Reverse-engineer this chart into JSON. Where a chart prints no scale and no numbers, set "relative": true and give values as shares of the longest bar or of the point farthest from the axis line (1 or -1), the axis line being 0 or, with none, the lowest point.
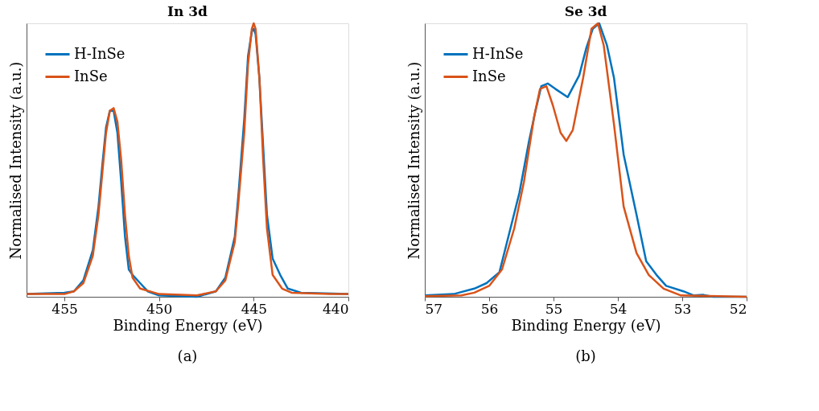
{
  "chart_data": [
    {
      "type": "line",
      "title": "In 3d",
      "xlabel": "Binding Energy (eV)",
      "ylabel": "Normalised Intensity (a.u.)",
      "relative": true,
      "legend": "top left",
      "grid": false,
      "xlim": [
        457,
        440
      ],
      "xticks": [
        455,
        450,
        445,
        440
      ],
      "annotations": [
        "(a)"
      ],
      "series": [
        {
          "name": "H-InSe",
          "color": "#0072bd",
          "x": [
            457,
            455,
            454.5,
            454,
            453.5,
            453.2,
            453,
            452.8,
            452.6,
            452.4,
            452.2,
            452,
            451.8,
            451.6,
            451.4,
            451,
            450.6,
            450,
            448,
            447,
            446.5,
            446,
            445.8,
            445.5,
            445.3,
            445.1,
            445,
            444.9,
            444.7,
            444.5,
            444.3,
            444,
            443.6,
            443.2,
            442.5,
            440
          ],
          "values": [
            0.01,
            0.015,
            0.02,
            0.06,
            0.17,
            0.33,
            0.48,
            0.62,
            0.68,
            0.68,
            0.6,
            0.42,
            0.22,
            0.1,
            0.08,
            0.05,
            0.02,
            0.005,
            0.0,
            0.02,
            0.07,
            0.22,
            0.38,
            0.65,
            0.88,
            0.97,
            0.98,
            0.96,
            0.8,
            0.55,
            0.3,
            0.14,
            0.08,
            0.03,
            0.015,
            0.01
          ]
        },
        {
          "name": "InSe",
          "color": "#d95319",
          "x": [
            457,
            455,
            454.5,
            454,
            453.5,
            453.2,
            453,
            452.8,
            452.6,
            452.4,
            452.2,
            452,
            451.8,
            451.6,
            451.4,
            451,
            450,
            448,
            447,
            446.5,
            446,
            445.8,
            445.5,
            445.3,
            445.1,
            445,
            444.9,
            444.7,
            444.5,
            444.3,
            444,
            443.5,
            443,
            441,
            440
          ],
          "values": [
            0.01,
            0.01,
            0.02,
            0.05,
            0.15,
            0.3,
            0.45,
            0.6,
            0.68,
            0.69,
            0.64,
            0.5,
            0.3,
            0.15,
            0.07,
            0.03,
            0.01,
            0.005,
            0.02,
            0.06,
            0.2,
            0.35,
            0.6,
            0.85,
            0.98,
            1.0,
            0.98,
            0.8,
            0.5,
            0.25,
            0.08,
            0.03,
            0.015,
            0.01,
            0.01
          ]
        }
      ]
    },
    {
      "type": "line",
      "title": "Se 3d",
      "xlabel": "Binding Energy (eV)",
      "ylabel": "Normalised Intensity (a.u.)",
      "relative": true,
      "legend": "top left",
      "grid": false,
      "xlim": [
        57,
        52
      ],
      "xticks": [
        57,
        56,
        55,
        54,
        53,
        52
      ],
      "annotations": [
        "(b)"
      ],
      "series": [
        {
          "name": "H-InSe",
          "color": "#0072bd",
          "x": [
            57.0,
            56.55,
            56.23,
            56.04,
            55.84,
            55.69,
            55.53,
            55.38,
            55.28,
            55.19,
            55.09,
            54.97,
            54.78,
            54.6,
            54.49,
            54.39,
            54.29,
            54.17,
            54.06,
            53.91,
            53.71,
            53.56,
            53.4,
            53.25,
            52.98,
            52.82,
            52.67,
            52.52,
            52.0
          ],
          "values": [
            0.005,
            0.01,
            0.03,
            0.05,
            0.09,
            0.23,
            0.38,
            0.57,
            0.68,
            0.77,
            0.78,
            0.76,
            0.73,
            0.81,
            0.91,
            0.98,
            1.0,
            0.92,
            0.8,
            0.52,
            0.3,
            0.13,
            0.08,
            0.04,
            0.02,
            0.005,
            0.007,
            0,
            0
          ]
        },
        {
          "name": "InSe",
          "color": "#d95319",
          "x": [
            57.0,
            56.43,
            56.23,
            56.0,
            55.8,
            55.61,
            55.46,
            55.3,
            55.21,
            55.11,
            55.01,
            54.89,
            54.8,
            54.7,
            54.54,
            54.41,
            54.31,
            54.22,
            54.06,
            53.91,
            53.71,
            53.52,
            53.29,
            53.02,
            52.0
          ],
          "values": [
            0.002,
            0.005,
            0.015,
            0.04,
            0.1,
            0.25,
            0.42,
            0.66,
            0.76,
            0.77,
            0.7,
            0.6,
            0.57,
            0.61,
            0.8,
            0.98,
            1.0,
            0.92,
            0.63,
            0.33,
            0.16,
            0.08,
            0.03,
            0.005,
            0
          ]
        }
      ]
    }
  ]
}
